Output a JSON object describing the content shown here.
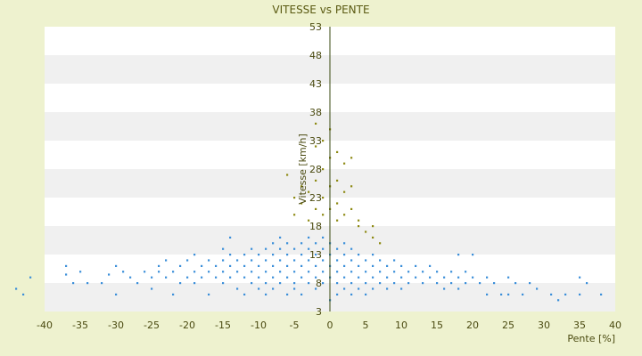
{
  "chart_data": {
    "type": "scatter",
    "title": "VITESSE vs PENTE",
    "xlabel": "Pente [%]",
    "ylabel": "Vitesse [km/h]",
    "xlim": [
      -40,
      40
    ],
    "ylim": [
      3,
      53
    ],
    "x_ticks": [
      "-40",
      "-35",
      "-30",
      "-25",
      "-20",
      "-15",
      "-10",
      "-5",
      "0",
      "5",
      "10",
      "15",
      "20",
      "25",
      "30",
      "35",
      "40"
    ],
    "y_ticks": [
      "3",
      "8",
      "13",
      "18",
      "23",
      "28",
      "33",
      "38",
      "43",
      "48",
      "53"
    ],
    "background_bands": true,
    "legend": "none",
    "colors": {
      "main_series": "#3b8fd9",
      "secondary_series": "#8e8a14",
      "plot_band_light": "#ffffff",
      "plot_band_dark": "#f0f0f0",
      "y_axis_line": "#3a4a10"
    },
    "series": [
      {
        "values": [
          [
            -44,
            7
          ],
          [
            -43,
            6
          ],
          [
            -42,
            9
          ],
          [
            -37,
            9.5
          ],
          [
            -37,
            11
          ],
          [
            -36,
            8
          ],
          [
            -35,
            10
          ],
          [
            -34,
            8
          ],
          [
            -32,
            8
          ],
          [
            -31,
            9.5
          ],
          [
            -30,
            6
          ],
          [
            -30,
            11
          ],
          [
            -29,
            10
          ],
          [
            -28,
            9
          ],
          [
            -27,
            8
          ],
          [
            -26,
            10
          ],
          [
            -25,
            9
          ],
          [
            -25,
            7
          ],
          [
            -24,
            11
          ],
          [
            -24,
            10
          ],
          [
            -23,
            12
          ],
          [
            -23,
            9
          ],
          [
            -22,
            10
          ],
          [
            -22,
            6
          ],
          [
            -21,
            8
          ],
          [
            -21,
            11
          ],
          [
            -20,
            9
          ],
          [
            -20,
            12
          ],
          [
            -19,
            10
          ],
          [
            -19,
            8
          ],
          [
            -19,
            13
          ],
          [
            -18,
            9
          ],
          [
            -18,
            11
          ],
          [
            -17,
            6
          ],
          [
            -17,
            10
          ],
          [
            -17,
            12
          ],
          [
            -16,
            9
          ],
          [
            -16,
            11
          ],
          [
            -15,
            8
          ],
          [
            -15,
            10
          ],
          [
            -15,
            12
          ],
          [
            -15,
            14
          ],
          [
            -14,
            9
          ],
          [
            -14,
            11
          ],
          [
            -14,
            13
          ],
          [
            -14,
            16
          ],
          [
            -13,
            7
          ],
          [
            -13,
            10
          ],
          [
            -13,
            12
          ],
          [
            -12,
            9
          ],
          [
            -12,
            11
          ],
          [
            -12,
            13
          ],
          [
            -12,
            6
          ],
          [
            -11,
            8
          ],
          [
            -11,
            10
          ],
          [
            -11,
            12
          ],
          [
            -11,
            14
          ],
          [
            -10,
            9
          ],
          [
            -10,
            11
          ],
          [
            -10,
            13
          ],
          [
            -10,
            7
          ],
          [
            -9,
            8
          ],
          [
            -9,
            10
          ],
          [
            -9,
            12
          ],
          [
            -9,
            14
          ],
          [
            -9,
            6
          ],
          [
            -8,
            9
          ],
          [
            -8,
            11
          ],
          [
            -8,
            13
          ],
          [
            -8,
            15
          ],
          [
            -8,
            7
          ],
          [
            -7,
            8
          ],
          [
            -7,
            10
          ],
          [
            -7,
            12
          ],
          [
            -7,
            14
          ],
          [
            -7,
            16
          ],
          [
            -6,
            9
          ],
          [
            -6,
            11
          ],
          [
            -6,
            13
          ],
          [
            -6,
            15
          ],
          [
            -6,
            6
          ],
          [
            -5,
            7
          ],
          [
            -5,
            8
          ],
          [
            -5,
            10
          ],
          [
            -5,
            12
          ],
          [
            -5,
            14
          ],
          [
            -4,
            9
          ],
          [
            -4,
            11
          ],
          [
            -4,
            13
          ],
          [
            -4,
            15
          ],
          [
            -4,
            6
          ],
          [
            -3,
            8
          ],
          [
            -3,
            10
          ],
          [
            -3,
            12
          ],
          [
            -3,
            14
          ],
          [
            -3,
            16
          ],
          [
            -2,
            9
          ],
          [
            -2,
            11
          ],
          [
            -2,
            13
          ],
          [
            -2,
            15
          ],
          [
            -2,
            7
          ],
          [
            -1,
            8
          ],
          [
            -1,
            10
          ],
          [
            -1,
            12
          ],
          [
            -1,
            14
          ],
          [
            -1,
            16
          ],
          [
            0,
            9
          ],
          [
            0,
            11
          ],
          [
            0,
            13
          ],
          [
            0,
            15
          ],
          [
            0,
            5
          ],
          [
            1,
            8
          ],
          [
            1,
            10
          ],
          [
            1,
            12
          ],
          [
            1,
            14
          ],
          [
            1,
            6
          ],
          [
            2,
            9
          ],
          [
            2,
            11
          ],
          [
            2,
            13
          ],
          [
            2,
            15
          ],
          [
            2,
            7
          ],
          [
            3,
            8
          ],
          [
            3,
            10
          ],
          [
            3,
            12
          ],
          [
            3,
            14
          ],
          [
            3,
            6
          ],
          [
            4,
            9
          ],
          [
            4,
            11
          ],
          [
            4,
            13
          ],
          [
            4,
            7
          ],
          [
            5,
            8
          ],
          [
            5,
            10
          ],
          [
            5,
            12
          ],
          [
            5,
            6
          ],
          [
            6,
            9
          ],
          [
            6,
            11
          ],
          [
            6,
            13
          ],
          [
            6,
            7
          ],
          [
            7,
            8
          ],
          [
            7,
            10
          ],
          [
            7,
            12
          ],
          [
            8,
            9
          ],
          [
            8,
            11
          ],
          [
            8,
            7
          ],
          [
            9,
            8
          ],
          [
            9,
            10
          ],
          [
            9,
            12
          ],
          [
            10,
            9
          ],
          [
            10,
            11
          ],
          [
            10,
            7
          ],
          [
            11,
            8
          ],
          [
            11,
            10
          ],
          [
            12,
            9
          ],
          [
            12,
            11
          ],
          [
            13,
            8
          ],
          [
            13,
            10
          ],
          [
            14,
            9
          ],
          [
            14,
            11
          ],
          [
            15,
            8
          ],
          [
            15,
            10
          ],
          [
            16,
            9
          ],
          [
            16,
            7
          ],
          [
            17,
            8
          ],
          [
            17,
            10
          ],
          [
            18,
            9
          ],
          [
            18,
            13
          ],
          [
            18,
            7
          ],
          [
            19,
            8
          ],
          [
            19,
            10
          ],
          [
            20,
            13
          ],
          [
            20,
            9
          ],
          [
            21,
            8
          ],
          [
            22,
            9
          ],
          [
            22,
            6
          ],
          [
            23,
            8
          ],
          [
            24,
            6
          ],
          [
            25,
            9
          ],
          [
            25,
            6
          ],
          [
            26,
            8
          ],
          [
            27,
            6
          ],
          [
            28,
            8
          ],
          [
            29,
            7
          ],
          [
            31,
            6
          ],
          [
            32,
            5
          ],
          [
            33,
            6
          ],
          [
            35,
            9
          ],
          [
            35,
            6
          ],
          [
            36,
            8
          ],
          [
            38,
            6
          ]
        ]
      },
      {
        "values": [
          [
            -6,
            27
          ],
          [
            -5,
            23
          ],
          [
            -5,
            20
          ],
          [
            -4,
            22
          ],
          [
            -4,
            25
          ],
          [
            -3,
            19
          ],
          [
            -3,
            24
          ],
          [
            -2,
            21
          ],
          [
            -2,
            26
          ],
          [
            -2,
            32
          ],
          [
            -2,
            36
          ],
          [
            -1,
            20
          ],
          [
            -1,
            23
          ],
          [
            -1,
            28
          ],
          [
            -1,
            33
          ],
          [
            0,
            21
          ],
          [
            0,
            25
          ],
          [
            0,
            30
          ],
          [
            0,
            35
          ],
          [
            1,
            22
          ],
          [
            1,
            26
          ],
          [
            1,
            31
          ],
          [
            1,
            19
          ],
          [
            2,
            20
          ],
          [
            2,
            24
          ],
          [
            2,
            29
          ],
          [
            3,
            21
          ],
          [
            3,
            25
          ],
          [
            3,
            30
          ],
          [
            4,
            19
          ],
          [
            4,
            18
          ],
          [
            5,
            17
          ],
          [
            6,
            16
          ],
          [
            6,
            18
          ],
          [
            7,
            15
          ]
        ]
      }
    ]
  }
}
